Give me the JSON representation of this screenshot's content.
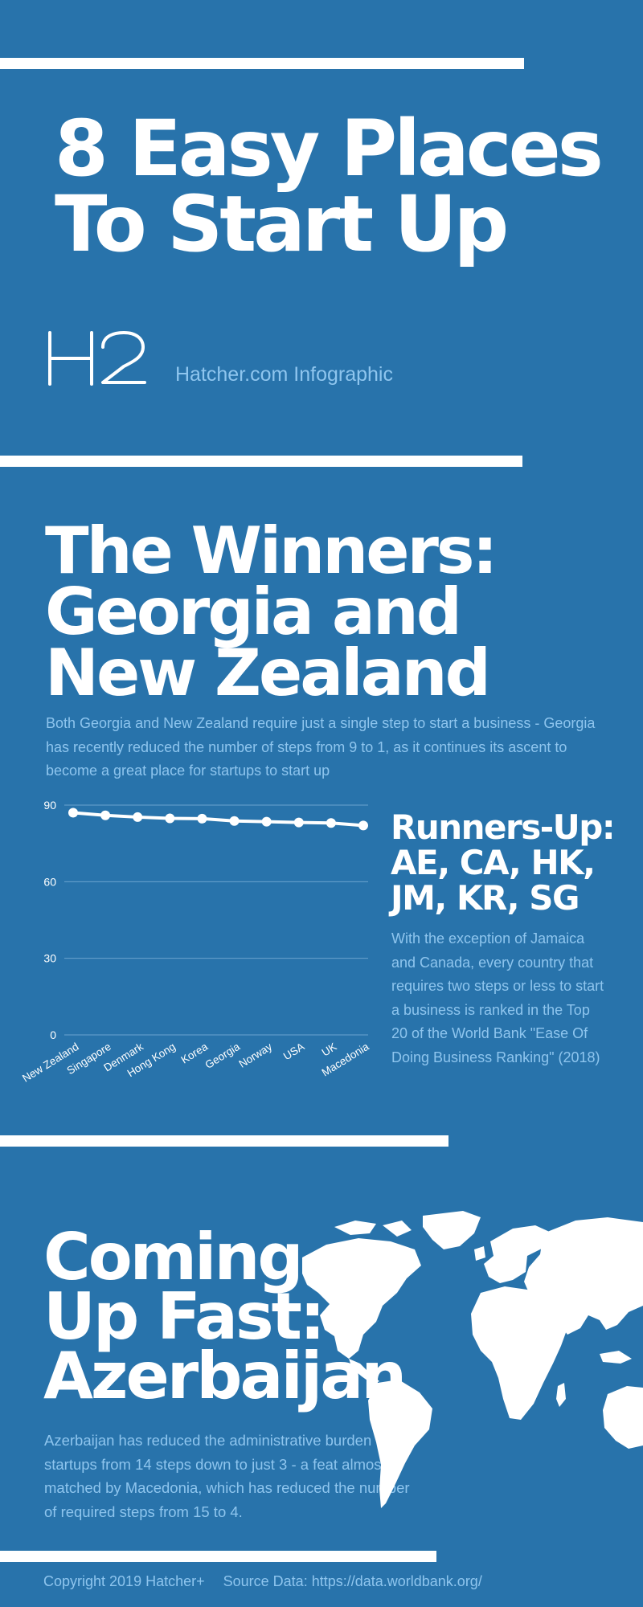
{
  "header": {
    "title_line1": "8 Easy Places",
    "title_line2": "To Start Up",
    "logo_text": "H2",
    "caption": "Hatcher.com Infographic"
  },
  "winners": {
    "title_line1": "The Winners:",
    "title_line2": "Georgia and",
    "title_line3": "New Zealand",
    "description": "Both Georgia and New Zealand require just a single step to start a business - Georgia has recently reduced the number of steps from 9 to 1, as it continues its ascent to become a great place for startups to start up"
  },
  "chart_data": {
    "type": "line",
    "categories": [
      "New Zealand",
      "Singapore",
      "Denmark",
      "Hong Kong",
      "Korea",
      "Georgia",
      "Norway",
      "USA",
      "UK",
      "Macedonia"
    ],
    "series": [
      {
        "values": [
          87,
          86,
          85.3,
          84.8,
          84.7,
          83.8,
          83.5,
          83.2,
          83,
          82
        ]
      }
    ],
    "yticks": [
      0,
      30,
      60,
      90
    ],
    "ylim": [
      0,
      90
    ],
    "grid": true,
    "line_color": "#ffffff",
    "grid_color": "#6aa3cf"
  },
  "runners_up": {
    "title_line1": "Runners-Up:",
    "title_line2": "AE, CA, HK,",
    "title_line3": "JM, KR, SG",
    "description": "With the exception of Jamaica and Canada, every country that requires two steps or less to start a business is ranked in the Top 20 of the World Bank \"Ease Of Doing Business Ranking\" (2018)"
  },
  "coming_up": {
    "title_line1": "Coming",
    "title_line2": "Up Fast:",
    "title_line3": "Azerbaijan",
    "description": "Azerbaijan has reduced the administrative burden for startups from 14  steps down to just 3 - a feat almost matched by Macedonia, which has reduced the number of required steps from 15  to 4."
  },
  "footer": {
    "copyright": "Copyright 2019 Hatcher+",
    "source": "Source Data: https://data.worldbank.org/"
  },
  "icons": {
    "map": "world-map-icon"
  },
  "colors": {
    "background": "#2873ab",
    "text_light": "#8ec5ee",
    "white": "#ffffff"
  }
}
